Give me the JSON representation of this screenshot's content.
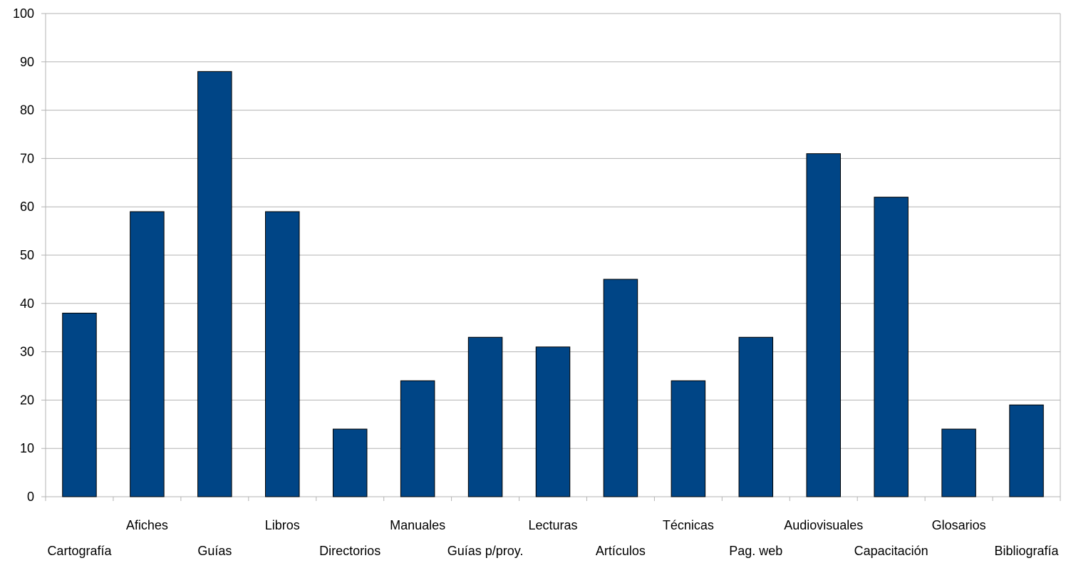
{
  "chart_data": {
    "type": "bar",
    "title": "",
    "xlabel": "",
    "ylabel": "",
    "categories": [
      "Cartografía",
      "Afiches",
      "Guías",
      "Libros",
      "Directorios",
      "Manuales",
      "Guías p/proy.",
      "Lecturas",
      "Artículos",
      "Técnicas",
      "Pag. web",
      "Audiovisuales",
      "Capacitación",
      "Glosarios",
      "Bibliografía"
    ],
    "values": [
      38,
      59,
      88,
      59,
      14,
      24,
      33,
      31,
      45,
      24,
      33,
      71,
      62,
      14,
      19
    ],
    "ylim": [
      0,
      100
    ],
    "yticks": [
      "0",
      "10",
      "20",
      "30",
      "40",
      "50",
      "60",
      "70",
      "80",
      "90",
      "100"
    ],
    "grid": true,
    "legend": "none",
    "label_layout": "staggered-two-rows",
    "colors": {
      "bar_fill": "#004586",
      "bar_stroke": "#000000",
      "grid": "#b3b3b3",
      "axis": "#b3b3b3"
    }
  }
}
